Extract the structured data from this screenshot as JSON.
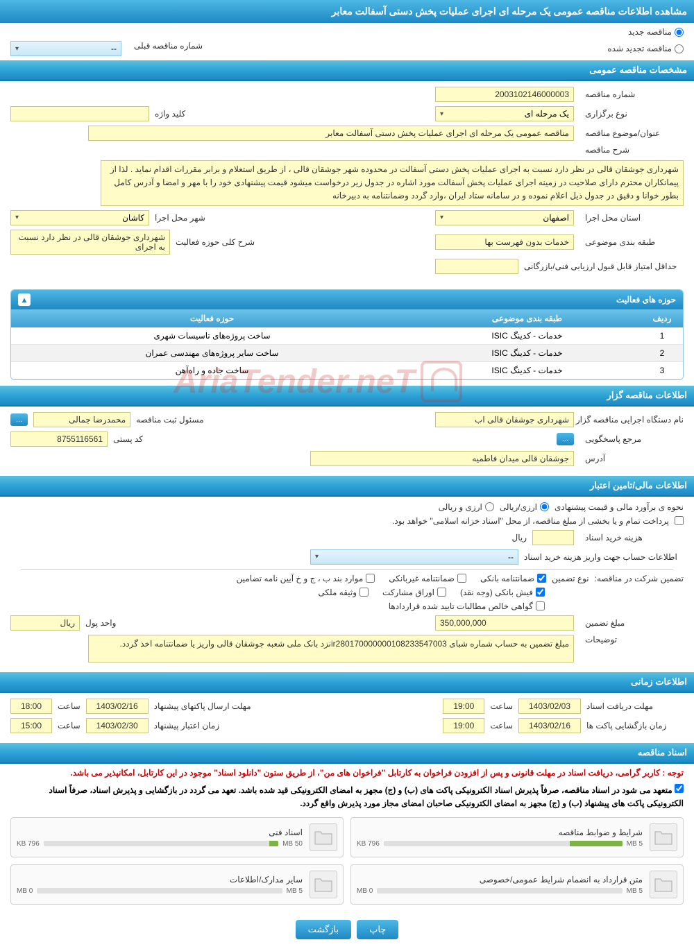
{
  "main_title": "مشاهده اطلاعات مناقصه عمومی یک مرحله ای اجرای عملیات پخش دستی آسفالت معابر",
  "radio_options": {
    "new_tender": "مناقصه جدید",
    "renewed_tender": "مناقصه تجدید شده"
  },
  "prev_number": {
    "label": "شماره مناقصه قبلی",
    "value": "--"
  },
  "sections": {
    "general": "مشخصات مناقصه عمومی",
    "activity": "حوزه های فعالیت",
    "organizer": "اطلاعات مناقصه گزار",
    "financial": "اطلاعات مالی/تامین اعتبار",
    "timing": "اطلاعات زمانی",
    "documents": "اسناد مناقصه"
  },
  "general": {
    "tender_number_label": "شماره مناقصه",
    "tender_number": "2003102146000003",
    "type_label": "نوع برگزاری",
    "type_value": "یک مرحله ای",
    "keyword_label": "کلید واژه",
    "keyword_value": "",
    "subject_label": "عنوان/موضوع مناقصه",
    "subject_value": "مناقصه عمومی یک مرحله ای اجرای عملیات پخش دستی آسفالت معابر",
    "description_label": "شرح مناقصه",
    "description_value": "شهرداری جوشقان قالی در نظر دارد نسبت به اجرای عملیات پخش دستی آسفالت در محدوده شهر جوشقان قالی ، از طریق استعلام و برابر مقررات اقدام نماید . لذا از پیمانکاران محترم دارای صلاحیت در زمینه اجرای عملیات پخش آسفالت مورد اشاره در جدول زیر درخواست میشود قیمت پیشنهادی خود را با مهر و امضا و آدرس کامل بطور خوانا و دقیق در جدول ذیل اعلام نموده و در سامانه ستاد ایران ،وارد  گردد وضمانتنامه به دبیرخانه",
    "province_label": "استان محل اجرا",
    "province_value": "اصفهان",
    "city_label": "شهر محل اجرا",
    "city_value": "کاشان",
    "category_label": "طبقه بندی موضوعی",
    "category_value": "خدمات بدون فهرست بها",
    "activity_scope_label": "شرح کلی حوزه فعالیت",
    "activity_scope_value": "شهرداری جوشقان قالی در نظر دارد نسبت به اجرای",
    "min_score_label": "حداقل امتیاز قابل قبول ارزیابی فنی/بازرگانی",
    "min_score_value": ""
  },
  "activity_table": {
    "col_row": "ردیف",
    "col_category": "طبقه بندی موضوعی",
    "col_field": "حوزه فعالیت",
    "rows": [
      {
        "n": "1",
        "cat": "خدمات - کدینگ ISIC",
        "field": "ساخت پروژه‌های تاسیسات شهری"
      },
      {
        "n": "2",
        "cat": "خدمات - کدینگ ISIC",
        "field": "ساخت سایر پروژه‌های مهندسی عمران"
      },
      {
        "n": "3",
        "cat": "خدمات - کدینگ ISIC",
        "field": "ساخت جاده و راه‌آهن"
      }
    ]
  },
  "organizer": {
    "org_label": "نام دستگاه اجرایی مناقصه گزار",
    "org_value": "شهرداری جوشقان قالی اب",
    "responsible_label": "مسئول ثبت مناقصه",
    "responsible_value": "محمدرضا جمالی",
    "more": "...",
    "reference_label": "مرجع پاسخگویی",
    "more2": "...",
    "postal_label": "کد پستی",
    "postal_value": "8755116561",
    "address_label": "آدرس",
    "address_value": "جوشقان قالی میدان فاطمیه"
  },
  "financial": {
    "estimate_label": "نحوه ی برآورد مالی و قیمت پیشنهادی",
    "option_currency": "ارزی/ریالی",
    "option_both": "ارزی و ریالی",
    "payment_note": "پرداخت تمام و یا بخشی از مبلغ مناقصه، از محل \"اسناد خزانه اسلامی\" خواهد بود.",
    "doc_cost_label": "هزینه خرید اسناد",
    "doc_cost_value": "",
    "doc_cost_unit": "ریال",
    "account_label": "اطلاعات حساب جهت واریز هزینه خرید اسناد",
    "account_value": "--",
    "guarantee_label": "تضمین شرکت در مناقصه:",
    "guarantee_type_label": "نوع تضمین",
    "chk_bank": "ضمانتنامه بانکی",
    "chk_nonbank": "ضمانتنامه غیربانکی",
    "chk_clause": "موارد بند ب ، ج و خ آیین نامه تضامین",
    "chk_cash": "فیش بانکی (وجه نقد)",
    "chk_bonds": "اوراق مشارکت",
    "chk_property": "وثیقه ملکی",
    "chk_receivables": "گواهی خالص مطالبات تایید شده قراردادها",
    "amount_label": "مبلغ تضمین",
    "amount_value": "350,000,000",
    "unit_label": "واحد پول",
    "unit_value": "ریال",
    "notes_label": "توضیحات",
    "notes_value": "مبلغ تضمین به حساب شماره شبای ir280170000000108233547003نزد بانک ملی شعبه جوشقان قالی واریز یا ضمانتنامه اخذ گردد."
  },
  "timing": {
    "receipt_label": "مهلت دریافت اسناد",
    "receipt_date": "1403/02/03",
    "receipt_time_label": "ساعت",
    "receipt_time": "19:00",
    "submit_label": "مهلت ارسال پاکتهای پیشنهاد",
    "submit_date": "1403/02/16",
    "submit_time_label": "ساعت",
    "submit_time": "18:00",
    "opening_label": "زمان بازگشایی پاکت ها",
    "opening_date": "1403/02/16",
    "opening_time_label": "ساعت",
    "opening_time": "19:00",
    "validity_label": "زمان اعتبار پیشنهاد",
    "validity_date": "1403/02/30",
    "validity_time_label": "ساعت",
    "validity_time": "15:00"
  },
  "documents": {
    "notice1": "توجه : کاربر گرامی، دریافت اسناد در مهلت قانونی و پس از افزودن فراخوان به کارتابل \"فراخوان های من\"، از طریق ستون \"دانلود اسناد\" موجود در این کارتابل، امکانپذیر می باشد.",
    "notice2": "متعهد می شود در اسناد مناقصه، صرفاً پذیرش اسناد الکترونیکی پاکت های (ب) و (ج) مجهز به امضای الکترونیکی قید شده باشد. تعهد می گردد در بازگشایی و پذیرش اسناد، صرفاً اسناد الکترونیکی پاکت های پیشنهاد (ب) و (ج) مجهز به امضای الکترونیکی صاحبان امضای مجاز مورد پذیرش واقع گردد.",
    "files": [
      {
        "name": "شرایط و ضوابط مناقصه",
        "size": "796 KB",
        "max": "5 MB",
        "fill": 22
      },
      {
        "name": "اسناد فنی",
        "size": "796 KB",
        "max": "50 MB",
        "fill": 4
      },
      {
        "name": "متن قرارداد به انضمام شرایط عمومی/خصوصی",
        "size": "0 MB",
        "max": "5 MB",
        "fill": 0
      },
      {
        "name": "سایر مدارک/اطلاعات",
        "size": "0 MB",
        "max": "5 MB",
        "fill": 0
      }
    ]
  },
  "buttons": {
    "print": "چاپ",
    "back": "بازگشت"
  },
  "watermark": "AriaTender.neT"
}
